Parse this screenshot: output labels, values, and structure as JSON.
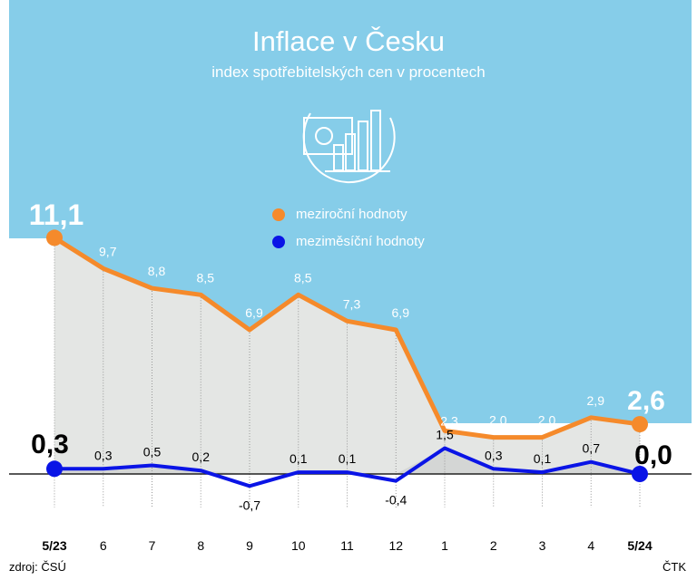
{
  "header": {
    "title": "Inflace v Česku",
    "subtitle": "index spotřebitelských cen v procentech",
    "icon": "money-chart-icon"
  },
  "legend": [
    {
      "label": "meziroční hodnoty",
      "color": "#f58a2b"
    },
    {
      "label": "meziměsíční hodnoty",
      "color": "#0a14e6"
    }
  ],
  "footer": {
    "source": "zdroj: ČSÚ",
    "agency": "ČTK"
  },
  "colors": {
    "background_panel": "#86cde9",
    "area": "#e4e6e4",
    "area_dark": "#c9cccb"
  },
  "chart_data": {
    "type": "line",
    "categories": [
      "5/23",
      "6",
      "7",
      "8",
      "9",
      "10",
      "11",
      "12",
      "1",
      "2",
      "3",
      "4",
      "5/24"
    ],
    "series": [
      {
        "name": "meziroční hodnoty",
        "color": "#f58a2b",
        "values": [
          11.1,
          9.7,
          8.8,
          8.5,
          6.9,
          8.5,
          7.3,
          6.9,
          2.3,
          2.0,
          2.0,
          2.9,
          2.6
        ],
        "labels": [
          "11,1",
          "9,7",
          "8,8",
          "8,5",
          "6,9",
          "8,5",
          "7,3",
          "6,9",
          "2,3",
          "2,0",
          "2,0",
          "2,9",
          "2,6"
        ]
      },
      {
        "name": "meziměsíční hodnoty",
        "color": "#0a14e6",
        "values": [
          0.3,
          0.3,
          0.5,
          0.2,
          -0.7,
          0.1,
          0.1,
          -0.4,
          1.5,
          0.3,
          0.1,
          0.7,
          0.0
        ],
        "labels": [
          "0,3",
          "0,3",
          "0,5",
          "0,2",
          "-0,7",
          "0,1",
          "0,1",
          "-0,4",
          "1,5",
          "0,3",
          "0,1",
          "0,7",
          "0,0"
        ]
      }
    ],
    "grid": "vertical dotted"
  }
}
